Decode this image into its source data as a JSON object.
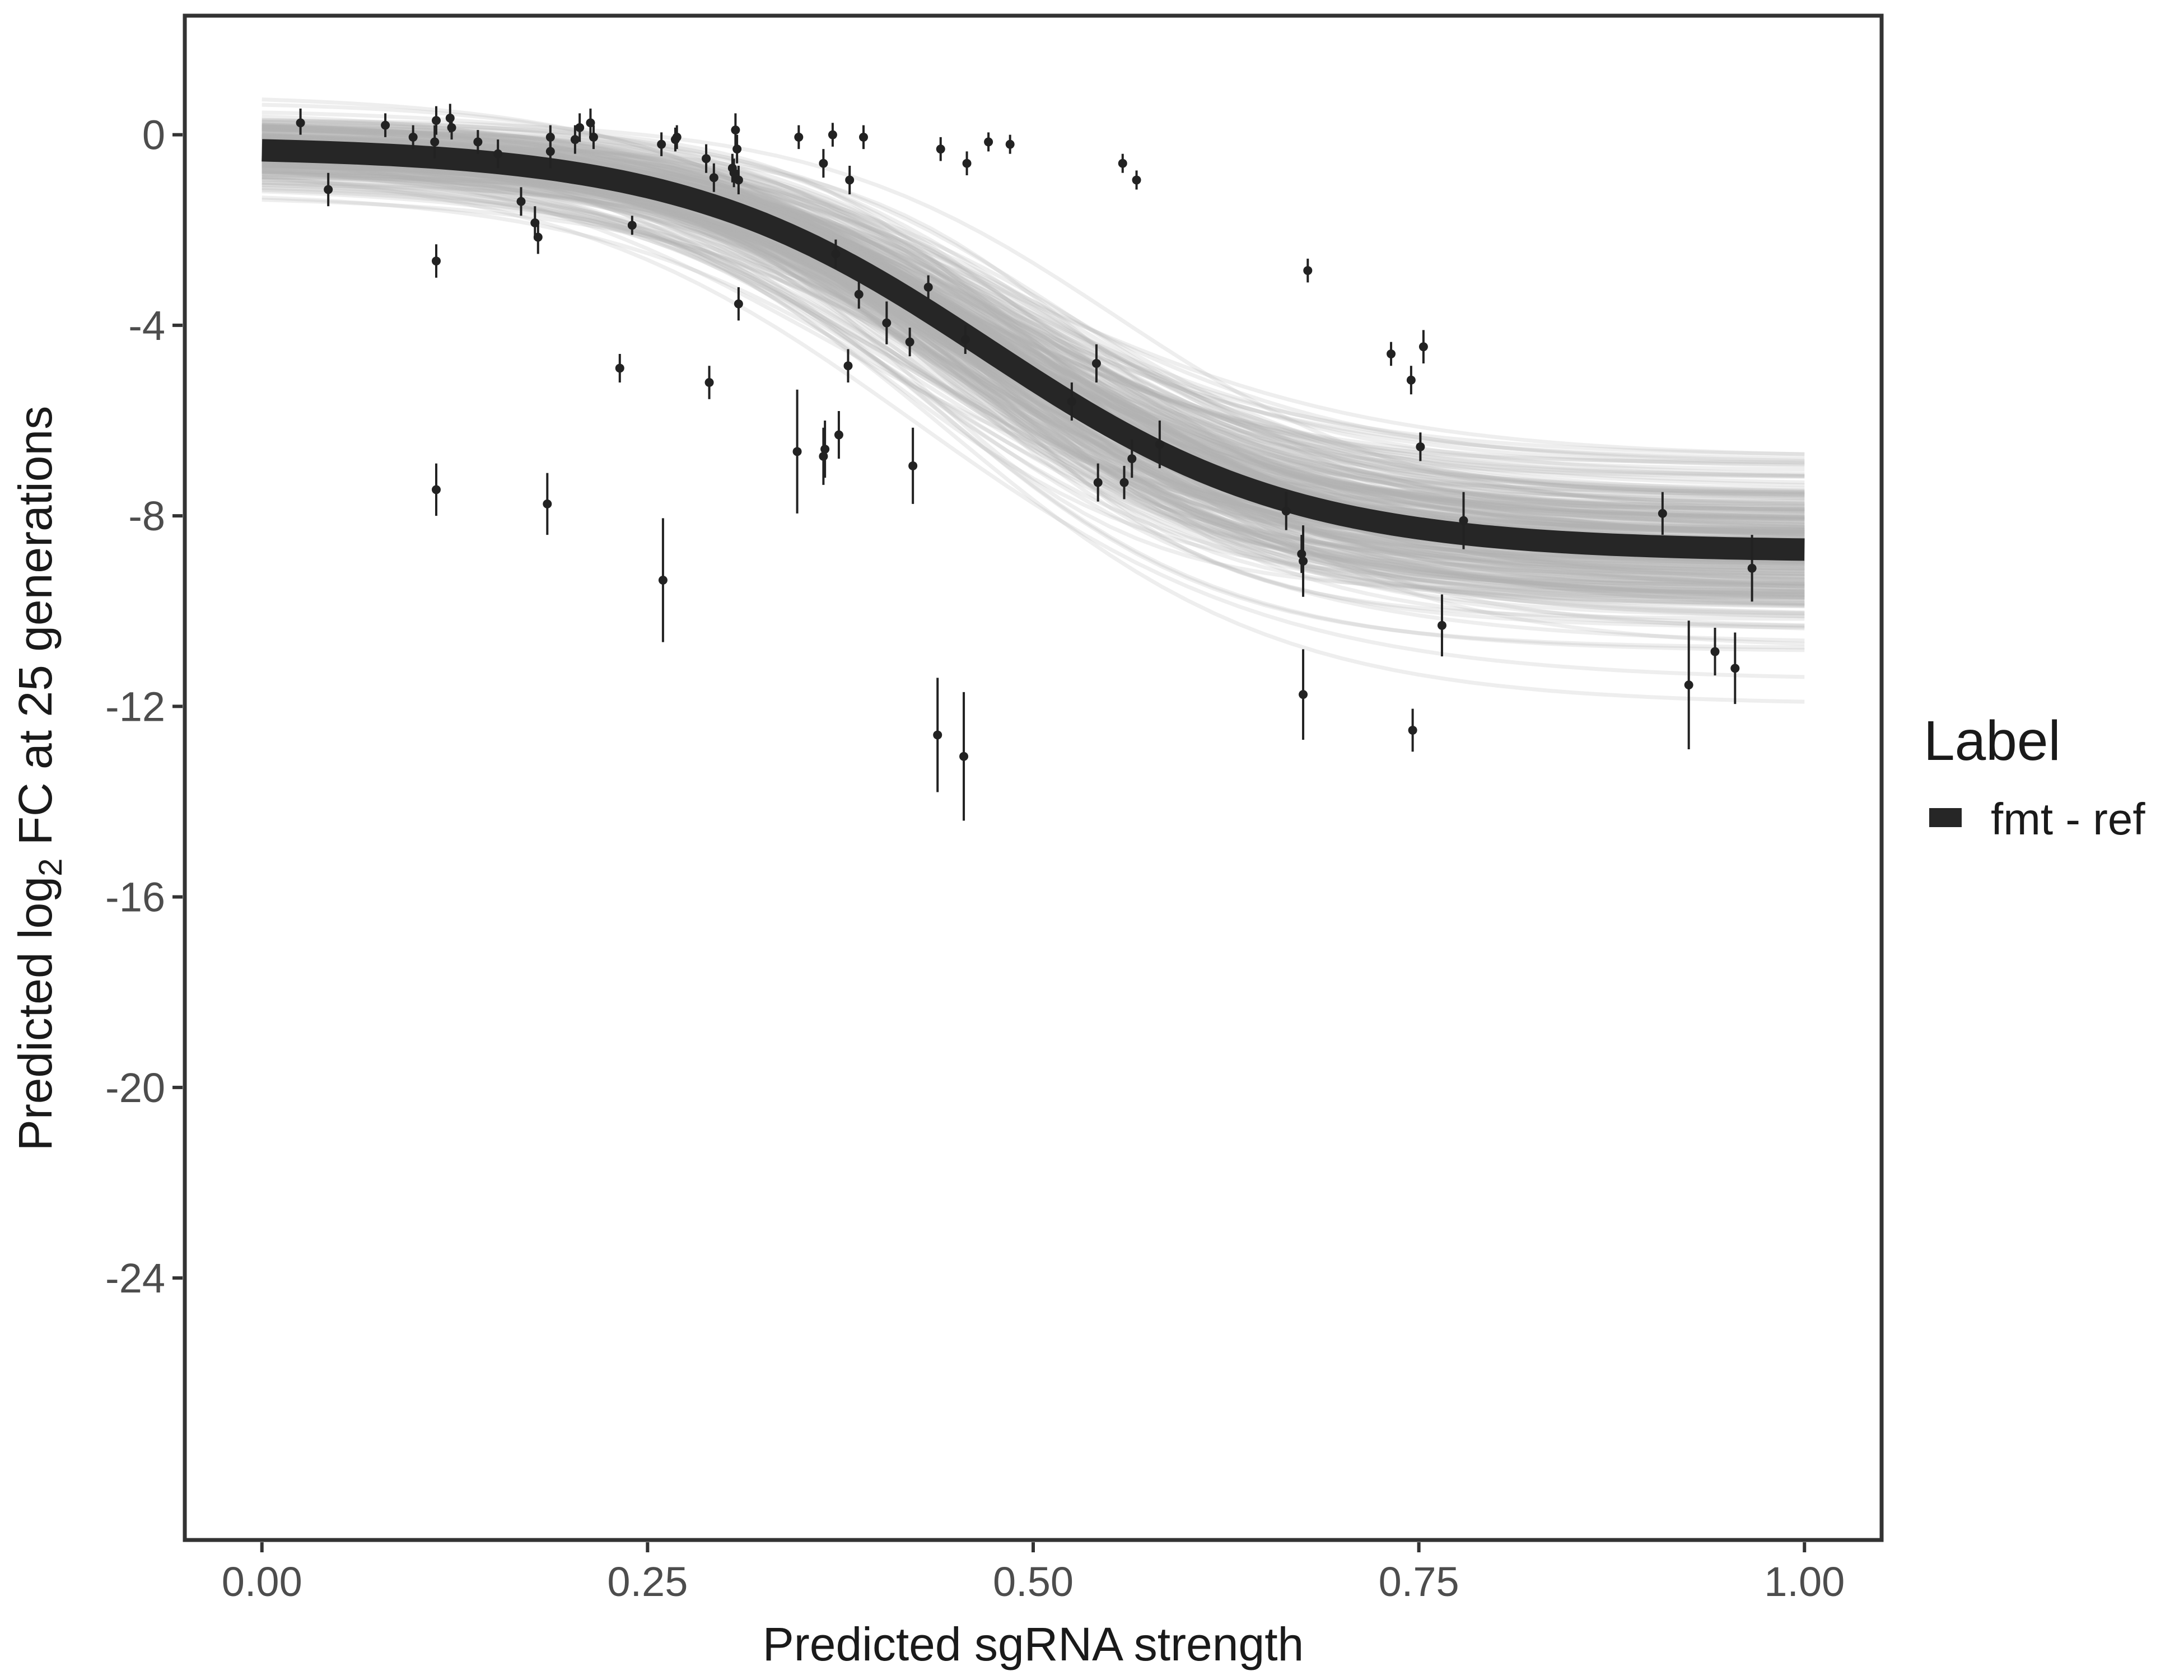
{
  "chart_data": {
    "type": "scatter",
    "xlabel": "Predicted sgRNA strength",
    "ylabel_parts": [
      "Predicted  log",
      "2",
      " FC at 25 generations"
    ],
    "xlim": [
      -0.05,
      1.05
    ],
    "ylim": [
      -29.5,
      2.5
    ],
    "x_ticks": [
      0.0,
      0.25,
      0.5,
      0.75,
      1.0
    ],
    "x_tick_labels": [
      "0.00",
      "0.25",
      "0.50",
      "0.75",
      "1.00"
    ],
    "y_ticks": [
      0,
      -4,
      -8,
      -12,
      -16,
      -20,
      -24
    ],
    "y_tick_labels": [
      "0",
      "-4",
      "-8",
      "-12",
      "-16",
      "-20",
      "-24"
    ],
    "grid": false,
    "legend": {
      "title": "Label",
      "position": "right",
      "entries": [
        {
          "label": "fmt - ref",
          "color": "#262626"
        }
      ]
    },
    "fit_curve": {
      "name": "fmt - ref",
      "form": "logistic",
      "upper": -0.25,
      "lower": -8.75,
      "midpoint": 0.47,
      "scale": 0.1,
      "color": "#262626"
    },
    "band_curves": {
      "count": 300,
      "color": "#b0b0b0"
    },
    "point_color": "#222222",
    "points": [
      {
        "x": 0.025,
        "y": 0.25,
        "lo": 0.0,
        "hi": 0.55
      },
      {
        "x": 0.043,
        "y": -1.15,
        "lo": -1.5,
        "hi": -0.8
      },
      {
        "x": 0.08,
        "y": 0.2,
        "lo": -0.05,
        "hi": 0.45
      },
      {
        "x": 0.098,
        "y": -0.05,
        "lo": -0.3,
        "hi": 0.2
      },
      {
        "x": 0.112,
        "y": -0.15,
        "lo": -0.5,
        "hi": 0.2
      },
      {
        "x": 0.113,
        "y": 0.3,
        "lo": 0.0,
        "hi": 0.6
      },
      {
        "x": 0.113,
        "y": -2.65,
        "lo": -3.0,
        "hi": -2.3
      },
      {
        "x": 0.113,
        "y": -7.45,
        "lo": -8.0,
        "hi": -6.9
      },
      {
        "x": 0.122,
        "y": 0.35,
        "lo": 0.05,
        "hi": 0.65
      },
      {
        "x": 0.123,
        "y": 0.15,
        "lo": -0.1,
        "hi": 0.4
      },
      {
        "x": 0.14,
        "y": -0.15,
        "lo": -0.4,
        "hi": 0.1
      },
      {
        "x": 0.153,
        "y": -0.4,
        "lo": -0.7,
        "hi": -0.1
      },
      {
        "x": 0.168,
        "y": -1.4,
        "lo": -1.7,
        "hi": -1.1
      },
      {
        "x": 0.177,
        "y": -1.85,
        "lo": -2.2,
        "hi": -1.5
      },
      {
        "x": 0.179,
        "y": -2.15,
        "lo": -2.5,
        "hi": -1.8
      },
      {
        "x": 0.185,
        "y": -7.75,
        "lo": -8.4,
        "hi": -7.1
      },
      {
        "x": 0.187,
        "y": -0.35,
        "lo": -0.7,
        "hi": 0.0
      },
      {
        "x": 0.187,
        "y": -0.05,
        "lo": -0.3,
        "hi": 0.2
      },
      {
        "x": 0.203,
        "y": -0.1,
        "lo": -0.4,
        "hi": 0.2
      },
      {
        "x": 0.206,
        "y": 0.15,
        "lo": -0.15,
        "hi": 0.45
      },
      {
        "x": 0.213,
        "y": 0.25,
        "lo": -0.05,
        "hi": 0.55
      },
      {
        "x": 0.215,
        "y": -0.05,
        "lo": -0.3,
        "hi": 0.2
      },
      {
        "x": 0.232,
        "y": -4.9,
        "lo": -5.2,
        "hi": -4.6
      },
      {
        "x": 0.24,
        "y": -1.9,
        "lo": -2.1,
        "hi": -1.7
      },
      {
        "x": 0.259,
        "y": -0.2,
        "lo": -0.45,
        "hi": 0.05
      },
      {
        "x": 0.26,
        "y": -9.35,
        "lo": -10.65,
        "hi": -8.05
      },
      {
        "x": 0.268,
        "y": -0.1,
        "lo": -0.35,
        "hi": 0.15
      },
      {
        "x": 0.269,
        "y": -0.05,
        "lo": -0.3,
        "hi": 0.2
      },
      {
        "x": 0.288,
        "y": -0.5,
        "lo": -0.8,
        "hi": -0.2
      },
      {
        "x": 0.29,
        "y": -5.2,
        "lo": -5.55,
        "hi": -4.85
      },
      {
        "x": 0.293,
        "y": -0.9,
        "lo": -1.2,
        "hi": -0.6
      },
      {
        "x": 0.305,
        "y": -0.7,
        "lo": -1.0,
        "hi": -0.4
      },
      {
        "x": 0.306,
        "y": -0.8,
        "lo": -1.1,
        "hi": -0.5
      },
      {
        "x": 0.307,
        "y": 0.1,
        "lo": -0.25,
        "hi": 0.45
      },
      {
        "x": 0.308,
        "y": -0.3,
        "lo": -0.6,
        "hi": 0.0
      },
      {
        "x": 0.309,
        "y": -0.95,
        "lo": -1.25,
        "hi": -0.65
      },
      {
        "x": 0.309,
        "y": -3.55,
        "lo": -3.9,
        "hi": -3.2
      },
      {
        "x": 0.347,
        "y": -6.65,
        "lo": -7.95,
        "hi": -5.35
      },
      {
        "x": 0.348,
        "y": -0.05,
        "lo": -0.3,
        "hi": 0.2
      },
      {
        "x": 0.364,
        "y": -0.6,
        "lo": -0.9,
        "hi": -0.3
      },
      {
        "x": 0.364,
        "y": -6.75,
        "lo": -7.35,
        "hi": -6.15
      },
      {
        "x": 0.365,
        "y": -6.6,
        "lo": -7.2,
        "hi": -6.0
      },
      {
        "x": 0.37,
        "y": 0.0,
        "lo": -0.25,
        "hi": 0.25
      },
      {
        "x": 0.372,
        "y": -2.5,
        "lo": -2.8,
        "hi": -2.2
      },
      {
        "x": 0.374,
        "y": -6.3,
        "lo": -6.8,
        "hi": -5.8
      },
      {
        "x": 0.38,
        "y": -4.85,
        "lo": -5.2,
        "hi": -4.5
      },
      {
        "x": 0.381,
        "y": -0.95,
        "lo": -1.25,
        "hi": -0.65
      },
      {
        "x": 0.387,
        "y": -3.35,
        "lo": -3.65,
        "hi": -3.05
      },
      {
        "x": 0.39,
        "y": -0.05,
        "lo": -0.3,
        "hi": 0.2
      },
      {
        "x": 0.405,
        "y": -3.95,
        "lo": -4.4,
        "hi": -3.5
      },
      {
        "x": 0.42,
        "y": -4.35,
        "lo": -4.65,
        "hi": -4.05
      },
      {
        "x": 0.422,
        "y": -6.95,
        "lo": -7.75,
        "hi": -6.15
      },
      {
        "x": 0.432,
        "y": -3.2,
        "lo": -3.45,
        "hi": -2.95
      },
      {
        "x": 0.438,
        "y": -12.6,
        "lo": -13.8,
        "hi": -11.4
      },
      {
        "x": 0.44,
        "y": -0.3,
        "lo": -0.55,
        "hi": -0.05
      },
      {
        "x": 0.455,
        "y": -13.05,
        "lo": -14.4,
        "hi": -11.7
      },
      {
        "x": 0.456,
        "y": -4.3,
        "lo": -4.6,
        "hi": -4.0
      },
      {
        "x": 0.457,
        "y": -0.6,
        "lo": -0.85,
        "hi": -0.35
      },
      {
        "x": 0.471,
        "y": -0.15,
        "lo": -0.35,
        "hi": 0.05
      },
      {
        "x": 0.485,
        "y": -0.2,
        "lo": -0.4,
        "hi": 0.0
      },
      {
        "x": 0.525,
        "y": -5.6,
        "lo": -6.0,
        "hi": -5.2
      },
      {
        "x": 0.541,
        "y": -4.8,
        "lo": -5.2,
        "hi": -4.4
      },
      {
        "x": 0.542,
        "y": -7.3,
        "lo": -7.7,
        "hi": -6.9
      },
      {
        "x": 0.558,
        "y": -0.6,
        "lo": -0.8,
        "hi": -0.4
      },
      {
        "x": 0.559,
        "y": -7.3,
        "lo": -7.65,
        "hi": -6.95
      },
      {
        "x": 0.564,
        "y": -6.8,
        "lo": -7.2,
        "hi": -6.4
      },
      {
        "x": 0.567,
        "y": -0.95,
        "lo": -1.15,
        "hi": -0.75
      },
      {
        "x": 0.582,
        "y": -6.5,
        "lo": -7.0,
        "hi": -6.0
      },
      {
        "x": 0.664,
        "y": -7.9,
        "lo": -8.3,
        "hi": -7.5
      },
      {
        "x": 0.674,
        "y": -8.8,
        "lo": -9.2,
        "hi": -8.4
      },
      {
        "x": 0.675,
        "y": -8.95,
        "lo": -9.7,
        "hi": -8.2
      },
      {
        "x": 0.675,
        "y": -11.75,
        "lo": -12.7,
        "hi": -10.8
      },
      {
        "x": 0.678,
        "y": -2.85,
        "lo": -3.1,
        "hi": -2.6
      },
      {
        "x": 0.732,
        "y": -4.6,
        "lo": -4.85,
        "hi": -4.35
      },
      {
        "x": 0.745,
        "y": -5.15,
        "lo": -5.45,
        "hi": -4.85
      },
      {
        "x": 0.746,
        "y": -12.5,
        "lo": -12.95,
        "hi": -12.05
      },
      {
        "x": 0.751,
        "y": -6.55,
        "lo": -6.85,
        "hi": -6.25
      },
      {
        "x": 0.753,
        "y": -4.45,
        "lo": -4.8,
        "hi": -4.1
      },
      {
        "x": 0.765,
        "y": -10.3,
        "lo": -10.95,
        "hi": -9.65
      },
      {
        "x": 0.779,
        "y": -8.1,
        "lo": -8.7,
        "hi": -7.5
      },
      {
        "x": 0.908,
        "y": -7.95,
        "lo": -8.4,
        "hi": -7.5
      },
      {
        "x": 0.925,
        "y": -11.55,
        "lo": -12.9,
        "hi": -10.2
      },
      {
        "x": 0.942,
        "y": -10.85,
        "lo": -11.35,
        "hi": -10.35
      },
      {
        "x": 0.955,
        "y": -11.2,
        "lo": -11.95,
        "hi": -10.45
      },
      {
        "x": 0.966,
        "y": -9.1,
        "lo": -9.8,
        "hi": -8.4
      }
    ]
  }
}
